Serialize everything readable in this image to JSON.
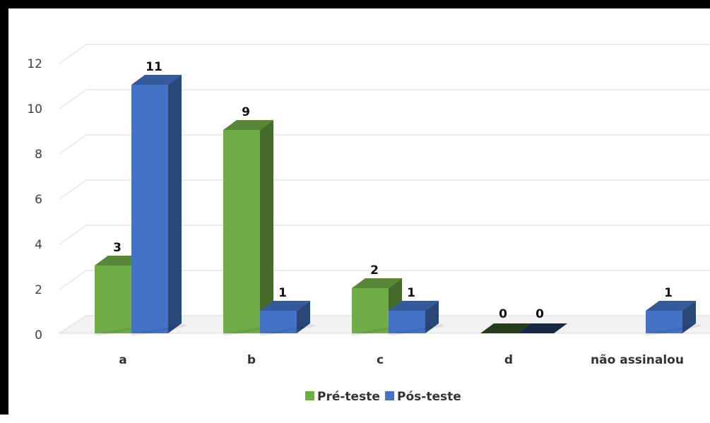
{
  "chart_data": {
    "type": "bar",
    "categories": [
      "a",
      "b",
      "c",
      "d",
      "não assinalou"
    ],
    "series": [
      {
        "name": "Pré-teste",
        "values": [
          3,
          9,
          2,
          0,
          null
        ],
        "color": "#70ad47"
      },
      {
        "name": "Pós-teste",
        "values": [
          11,
          1,
          1,
          0,
          1
        ],
        "color": "#4472c4"
      }
    ],
    "data_labels": [
      [
        "3",
        "9",
        "2",
        "0",
        ""
      ],
      [
        "11",
        "1",
        "1",
        "0",
        "1"
      ]
    ],
    "y_ticks": [
      "0",
      "2",
      "4",
      "6",
      "8",
      "10",
      "12"
    ],
    "ylim": [
      0,
      12
    ],
    "grid": true,
    "style": "3d-clustered-column",
    "legend_position": "bottom"
  }
}
